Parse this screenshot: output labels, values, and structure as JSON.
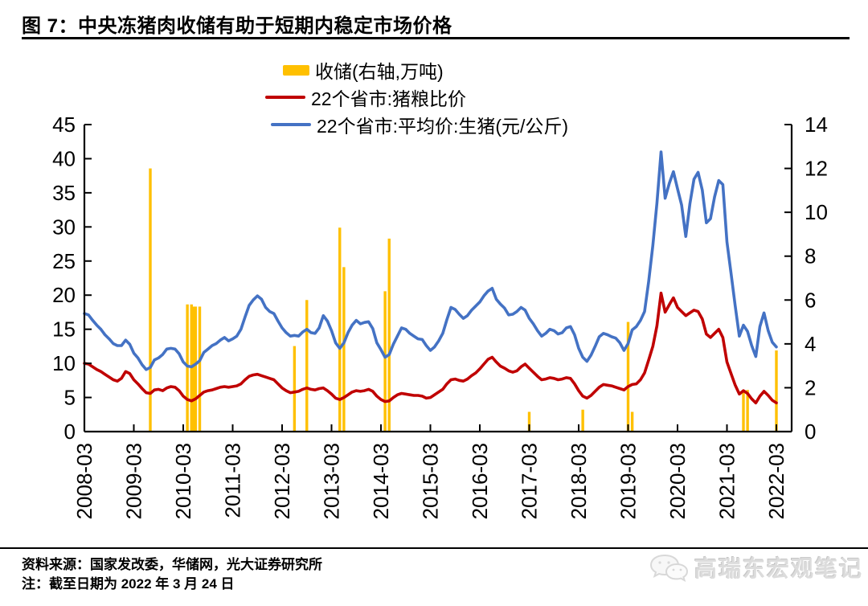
{
  "page": {
    "title": "图 7：中央冻猪肉收储有助于短期内稳定市场价格"
  },
  "legend": [
    {
      "label": "收储(右轴,万吨)",
      "color": "#FFC000",
      "type": "bar"
    },
    {
      "label": "22个省市:猪粮比价",
      "color": "#C00000",
      "type": "line"
    },
    {
      "label": "22个省市:平均价:生猪(元/公斤)",
      "color": "#4472C4",
      "type": "line"
    }
  ],
  "footer": {
    "source": "资料来源：国家发改委，华储网，光大证券研究所",
    "note": "注：截至日期为 2022 年 3 月 24 日",
    "watermark": "高瑞东宏观笔记",
    "watermark_icon": "wechat-logo"
  },
  "chart_data": {
    "type": "combo-bar-line",
    "title": "图 7：中央冻猪肉收储有助于短期内稳定市场价格",
    "x_start": "2008-03",
    "x_end": "2022-03",
    "x_tick_labels": [
      "2008-03",
      "2009-03",
      "2010-03",
      "2011-03",
      "2012-03",
      "2013-03",
      "2014-03",
      "2015-03",
      "2016-03",
      "2017-03",
      "2018-03",
      "2019-03",
      "2020-03",
      "2021-03",
      "2022-03"
    ],
    "left_axis": {
      "min": 0,
      "max": 45,
      "ticks": [
        0,
        5,
        10,
        15,
        20,
        25,
        30,
        35,
        40,
        45
      ]
    },
    "right_axis": {
      "min": 0,
      "max": 14,
      "ticks": [
        0,
        2,
        4,
        6,
        8,
        10,
        12,
        14
      ]
    },
    "grid": false,
    "legend_position": "top",
    "bars": {
      "name": "收储(右轴,万吨)",
      "axis": "right",
      "color": "#FFC000",
      "points": [
        {
          "date": "2009-07",
          "value": 12.0
        },
        {
          "date": "2010-04",
          "value": 5.8
        },
        {
          "date": "2010-05",
          "value": 5.8
        },
        {
          "date": "2010-05",
          "value": 5.7
        },
        {
          "date": "2010-06",
          "value": 5.7
        },
        {
          "date": "2010-07",
          "value": 5.7
        },
        {
          "date": "2012-06",
          "value": 3.9
        },
        {
          "date": "2012-09",
          "value": 6.0
        },
        {
          "date": "2013-05",
          "value": 9.3
        },
        {
          "date": "2013-06",
          "value": 7.5
        },
        {
          "date": "2014-04",
          "value": 6.4
        },
        {
          "date": "2014-05",
          "value": 8.8
        },
        {
          "date": "2017-03",
          "value": 0.9
        },
        {
          "date": "2018-04",
          "value": 1.0
        },
        {
          "date": "2019-03",
          "value": 5.0
        },
        {
          "date": "2019-04",
          "value": 0.9
        },
        {
          "date": "2021-07",
          "value": 1.9
        },
        {
          "date": "2021-08",
          "value": 1.9
        },
        {
          "date": "2022-03",
          "value": 3.7
        }
      ]
    },
    "series_start": "2008-03",
    "series_interval": "monthly",
    "series": [
      {
        "name": "22个省市:猪粮比价",
        "axis": "left",
        "color": "#C00000",
        "type": "line",
        "values": [
          10.0,
          9.9,
          9.5,
          9.1,
          8.8,
          8.4,
          8.0,
          7.6,
          7.4,
          7.8,
          8.8,
          8.5,
          7.6,
          7.0,
          6.3,
          5.7,
          5.6,
          6.1,
          6.2,
          6.0,
          6.4,
          6.6,
          6.5,
          6.0,
          5.2,
          4.7,
          4.5,
          4.8,
          5.3,
          5.8,
          6.0,
          6.1,
          6.3,
          6.5,
          6.6,
          6.5,
          6.6,
          6.7,
          7.0,
          7.6,
          8.1,
          8.3,
          8.4,
          8.2,
          8.0,
          7.8,
          7.6,
          7.0,
          6.4,
          6.0,
          5.7,
          5.8,
          5.9,
          6.2,
          6.4,
          6.2,
          6.1,
          6.3,
          6.4,
          6.0,
          5.5,
          4.9,
          4.7,
          5.0,
          5.4,
          5.8,
          6.0,
          5.9,
          6.0,
          6.2,
          5.9,
          5.2,
          4.7,
          4.4,
          4.5,
          5.0,
          5.4,
          5.6,
          5.5,
          5.4,
          5.3,
          5.3,
          5.2,
          4.9,
          5.0,
          5.4,
          5.8,
          6.2,
          7.0,
          7.6,
          7.7,
          7.5,
          7.4,
          7.7,
          8.2,
          8.6,
          9.2,
          9.9,
          10.6,
          10.9,
          10.2,
          9.6,
          9.3,
          8.9,
          8.7,
          8.9,
          9.5,
          9.9,
          9.3,
          8.7,
          8.1,
          7.6,
          7.7,
          7.9,
          7.8,
          7.6,
          7.7,
          7.9,
          7.8,
          7.0,
          6.0,
          5.2,
          4.9,
          5.3,
          5.9,
          6.5,
          6.9,
          6.8,
          6.7,
          6.5,
          6.3,
          6.1,
          6.6,
          6.9,
          7.0,
          7.6,
          8.6,
          10.5,
          12.5,
          15.5,
          20.3,
          17.5,
          18.6,
          19.6,
          18.2,
          17.6,
          17.0,
          17.4,
          17.8,
          17.6,
          16.5,
          14.3,
          13.8,
          14.4,
          15.0,
          13.8,
          10.2,
          8.5,
          6.8,
          5.5,
          6.0,
          5.6,
          4.8,
          4.2,
          5.2,
          5.9,
          5.3,
          4.6,
          4.2
        ]
      },
      {
        "name": "22个省市:平均价:生猪(元/公斤)",
        "axis": "left",
        "color": "#4472C4",
        "type": "line",
        "values": [
          17.3,
          17.1,
          16.3,
          15.6,
          15.0,
          14.2,
          13.6,
          12.9,
          12.6,
          12.6,
          13.4,
          12.8,
          11.5,
          10.8,
          9.8,
          9.1,
          9.4,
          10.5,
          10.8,
          11.3,
          12.1,
          12.2,
          12.1,
          11.4,
          10.2,
          9.6,
          9.5,
          9.9,
          10.4,
          11.6,
          12.1,
          12.6,
          12.9,
          13.4,
          13.8,
          13.3,
          13.6,
          14.0,
          15.0,
          16.8,
          18.5,
          19.3,
          19.9,
          19.4,
          18.2,
          17.6,
          17.3,
          16.2,
          15.2,
          14.5,
          14.0,
          14.1,
          14.0,
          14.6,
          15.0,
          14.5,
          14.4,
          15.2,
          17.0,
          16.2,
          14.8,
          13.0,
          12.2,
          13.0,
          14.5,
          15.6,
          16.3,
          15.8,
          16.0,
          16.1,
          15.1,
          13.0,
          12.0,
          10.9,
          11.3,
          12.8,
          14.0,
          15.2,
          15.0,
          14.4,
          14.0,
          13.6,
          13.5,
          12.6,
          11.9,
          12.4,
          13.3,
          14.4,
          16.4,
          18.2,
          17.9,
          17.2,
          16.6,
          17.0,
          17.8,
          18.4,
          19.0,
          19.9,
          20.6,
          21.0,
          19.4,
          18.7,
          18.1,
          17.1,
          17.2,
          17.6,
          18.2,
          17.8,
          16.6,
          15.8,
          14.8,
          14.0,
          14.4,
          15.0,
          14.8,
          14.3,
          14.5,
          15.2,
          15.4,
          14.2,
          12.2,
          10.9,
          10.3,
          11.2,
          12.5,
          13.9,
          14.4,
          14.2,
          13.9,
          13.7,
          13.0,
          11.9,
          12.9,
          14.9,
          15.4,
          16.3,
          17.6,
          22.0,
          27.3,
          33.5,
          41.0,
          34.2,
          36.4,
          38.1,
          35.6,
          33.2,
          28.6,
          33.4,
          37.0,
          38.0,
          35.4,
          30.6,
          31.2,
          34.4,
          36.8,
          36.2,
          27.8,
          23.2,
          18.4,
          14.0,
          15.6,
          14.7,
          12.6,
          11.0,
          15.4,
          17.4,
          14.8,
          13.1,
          12.4
        ]
      }
    ]
  }
}
